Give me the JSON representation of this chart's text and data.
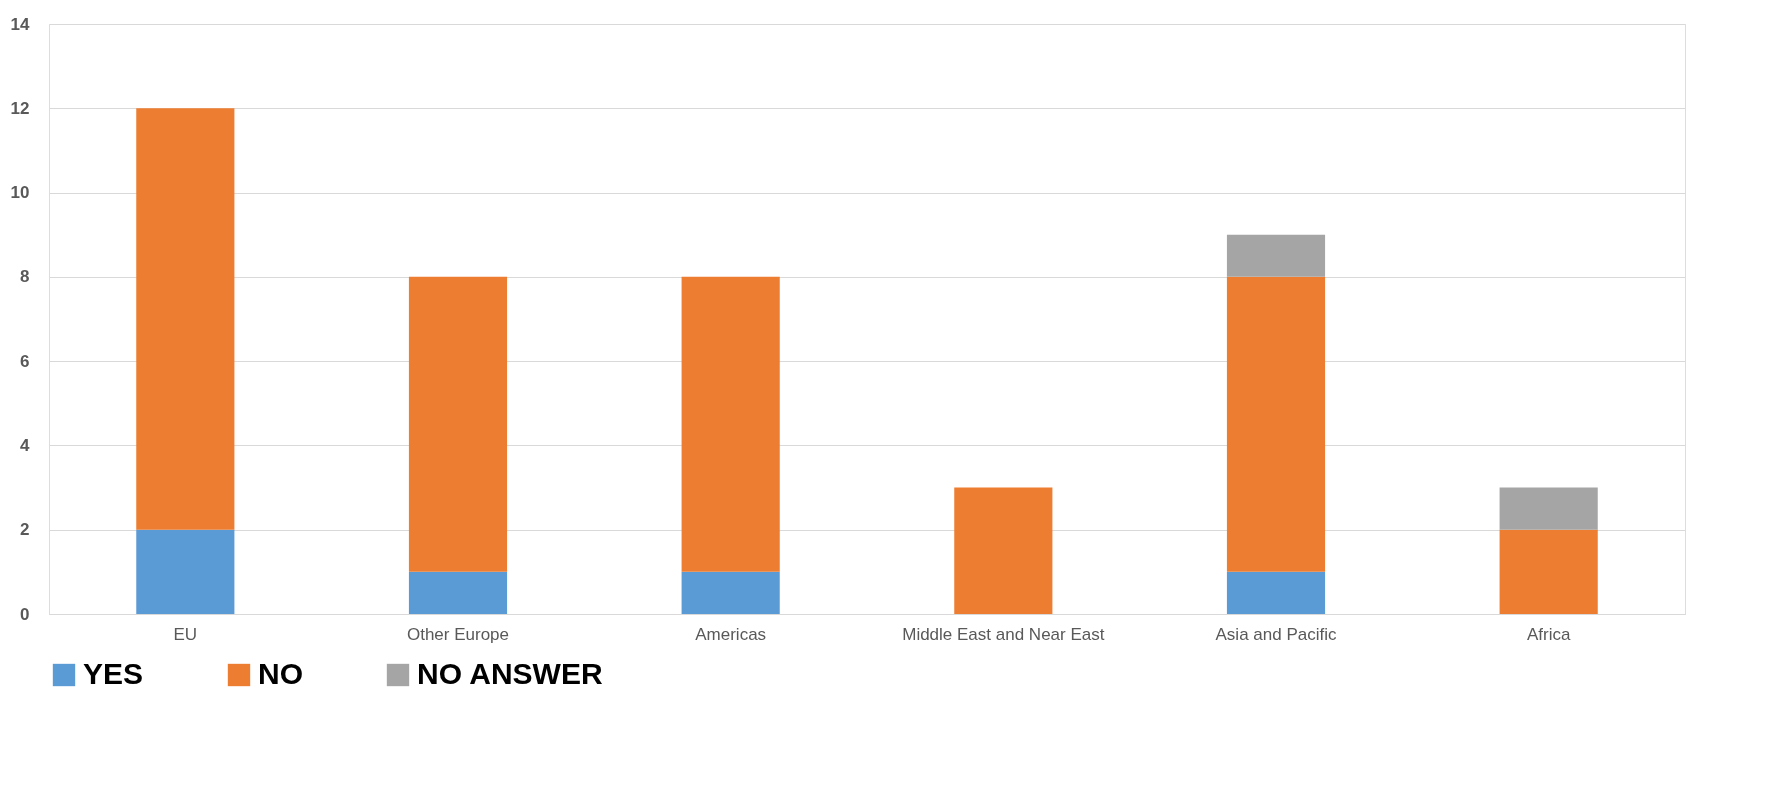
{
  "chart_data": {
    "type": "bar",
    "stacked": true,
    "categories": [
      "EU",
      "Other Europe",
      "Americas",
      "Middle East and Near East",
      "Asia and Pacific",
      "Africa"
    ],
    "series": [
      {
        "name": "YES",
        "color": "#5b9bd5",
        "values": [
          2,
          1,
          1,
          0,
          1,
          0
        ]
      },
      {
        "name": "NO",
        "color": "#ed7d31",
        "values": [
          10,
          7,
          7,
          3,
          7,
          2
        ]
      },
      {
        "name": "NO ANSWER",
        "color": "#a5a5a5",
        "values": [
          0,
          0,
          0,
          0,
          1,
          1
        ]
      }
    ],
    "ylim": [
      0,
      14
    ],
    "yticks": [
      0,
      2,
      4,
      6,
      8,
      10,
      12,
      14
    ],
    "grid": "y",
    "legend": "bottom"
  }
}
